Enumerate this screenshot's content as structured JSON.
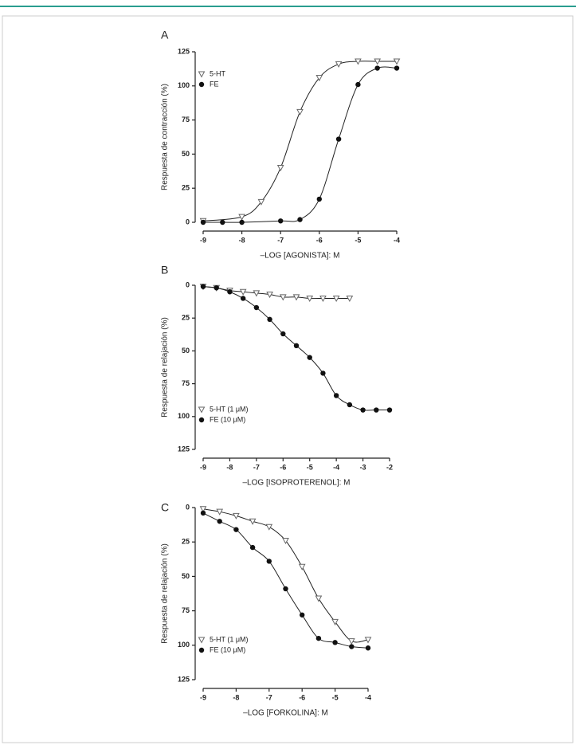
{
  "chart_data": [
    {
      "type": "line",
      "panel": "A",
      "xlabel": "–LOG [AGONISTA]: M",
      "ylabel": "Respuesta de contracción (%)",
      "xlim": [
        -9,
        -4
      ],
      "xticks": [
        -9,
        -8,
        -7,
        -6,
        -5,
        -4
      ],
      "ylim": [
        0,
        125
      ],
      "yticks": [
        0,
        25,
        50,
        75,
        100,
        125
      ],
      "y_reversed": false,
      "legend": "upper left",
      "series": [
        {
          "name": "5-HT",
          "color": "#666666",
          "marker": "triangle-down",
          "x": [
            -9,
            -8,
            -7.5,
            -7,
            -6.5,
            -6,
            -5.5,
            -5,
            -4.5,
            -4
          ],
          "values": [
            1,
            4,
            15,
            40,
            81,
            106,
            116,
            118,
            118,
            118
          ]
        },
        {
          "name": "FE",
          "color": "#111111",
          "marker": "circle",
          "x": [
            -9,
            -8.5,
            -8,
            -7,
            -6.5,
            -6,
            -5.5,
            -5,
            -4.5,
            -4
          ],
          "values": [
            0,
            0,
            0,
            1,
            2,
            17,
            61,
            101,
            113,
            113
          ]
        }
      ]
    },
    {
      "type": "line",
      "panel": "B",
      "xlabel": "–LOG [ISOPROTERENOL]: M",
      "ylabel": "Respuesta de relajación (%)",
      "xlim": [
        -9,
        -2
      ],
      "xticks": [
        -9,
        -8,
        -7,
        -6,
        -5,
        -4,
        -3,
        -2
      ],
      "ylim": [
        0,
        125
      ],
      "yticks": [
        0,
        25,
        50,
        75,
        100,
        125
      ],
      "y_reversed": true,
      "legend": "lower left",
      "series": [
        {
          "name": "5-HT  (1 μM)",
          "color": "#666666",
          "marker": "triangle-down",
          "x": [
            -9,
            -8.5,
            -8,
            -7.5,
            -7,
            -6.5,
            -6,
            -5.5,
            -5,
            -4.5,
            -4,
            -3.5
          ],
          "values": [
            1,
            2,
            4,
            5,
            6,
            7,
            9,
            9,
            10,
            10,
            10,
            10
          ]
        },
        {
          "name": "FE (10 μM)",
          "color": "#111111",
          "marker": "circle",
          "x": [
            -9,
            -8.5,
            -8,
            -7.5,
            -7,
            -6.5,
            -6,
            -5.5,
            -5,
            -4.5,
            -4,
            -3.5,
            -3,
            -2.5,
            -2
          ],
          "values": [
            1,
            2,
            5,
            10,
            17,
            26,
            37,
            46,
            55,
            67,
            84,
            91,
            95,
            95,
            95
          ]
        }
      ]
    },
    {
      "type": "line",
      "panel": "C",
      "xlabel": "–LOG [FORKOLINA]: M",
      "ylabel": "Respuesta de relajación (%)",
      "xlim": [
        -9,
        -4
      ],
      "xticks": [
        -9,
        -8,
        -7,
        -6,
        -5,
        -4
      ],
      "ylim": [
        0,
        125
      ],
      "yticks": [
        0,
        25,
        50,
        75,
        100,
        125
      ],
      "y_reversed": true,
      "legend": "lower left",
      "series": [
        {
          "name": "5-HT  (1 μM)",
          "color": "#666666",
          "marker": "triangle-down",
          "x": [
            -9,
            -8.5,
            -8,
            -7.5,
            -7,
            -6.5,
            -6,
            -5.5,
            -5,
            -4.5,
            -4
          ],
          "values": [
            1,
            3,
            6,
            10,
            14,
            24,
            43,
            66,
            83,
            97,
            96
          ]
        },
        {
          "name": "FE (10 μM)",
          "color": "#111111",
          "marker": "circle",
          "x": [
            -9,
            -8.5,
            -8,
            -7.5,
            -7,
            -6.5,
            -6,
            -5.5,
            -5,
            -4.5,
            -4
          ],
          "values": [
            4,
            10,
            16,
            29,
            39,
            59,
            78,
            95,
            98,
            101,
            102
          ]
        }
      ]
    }
  ]
}
